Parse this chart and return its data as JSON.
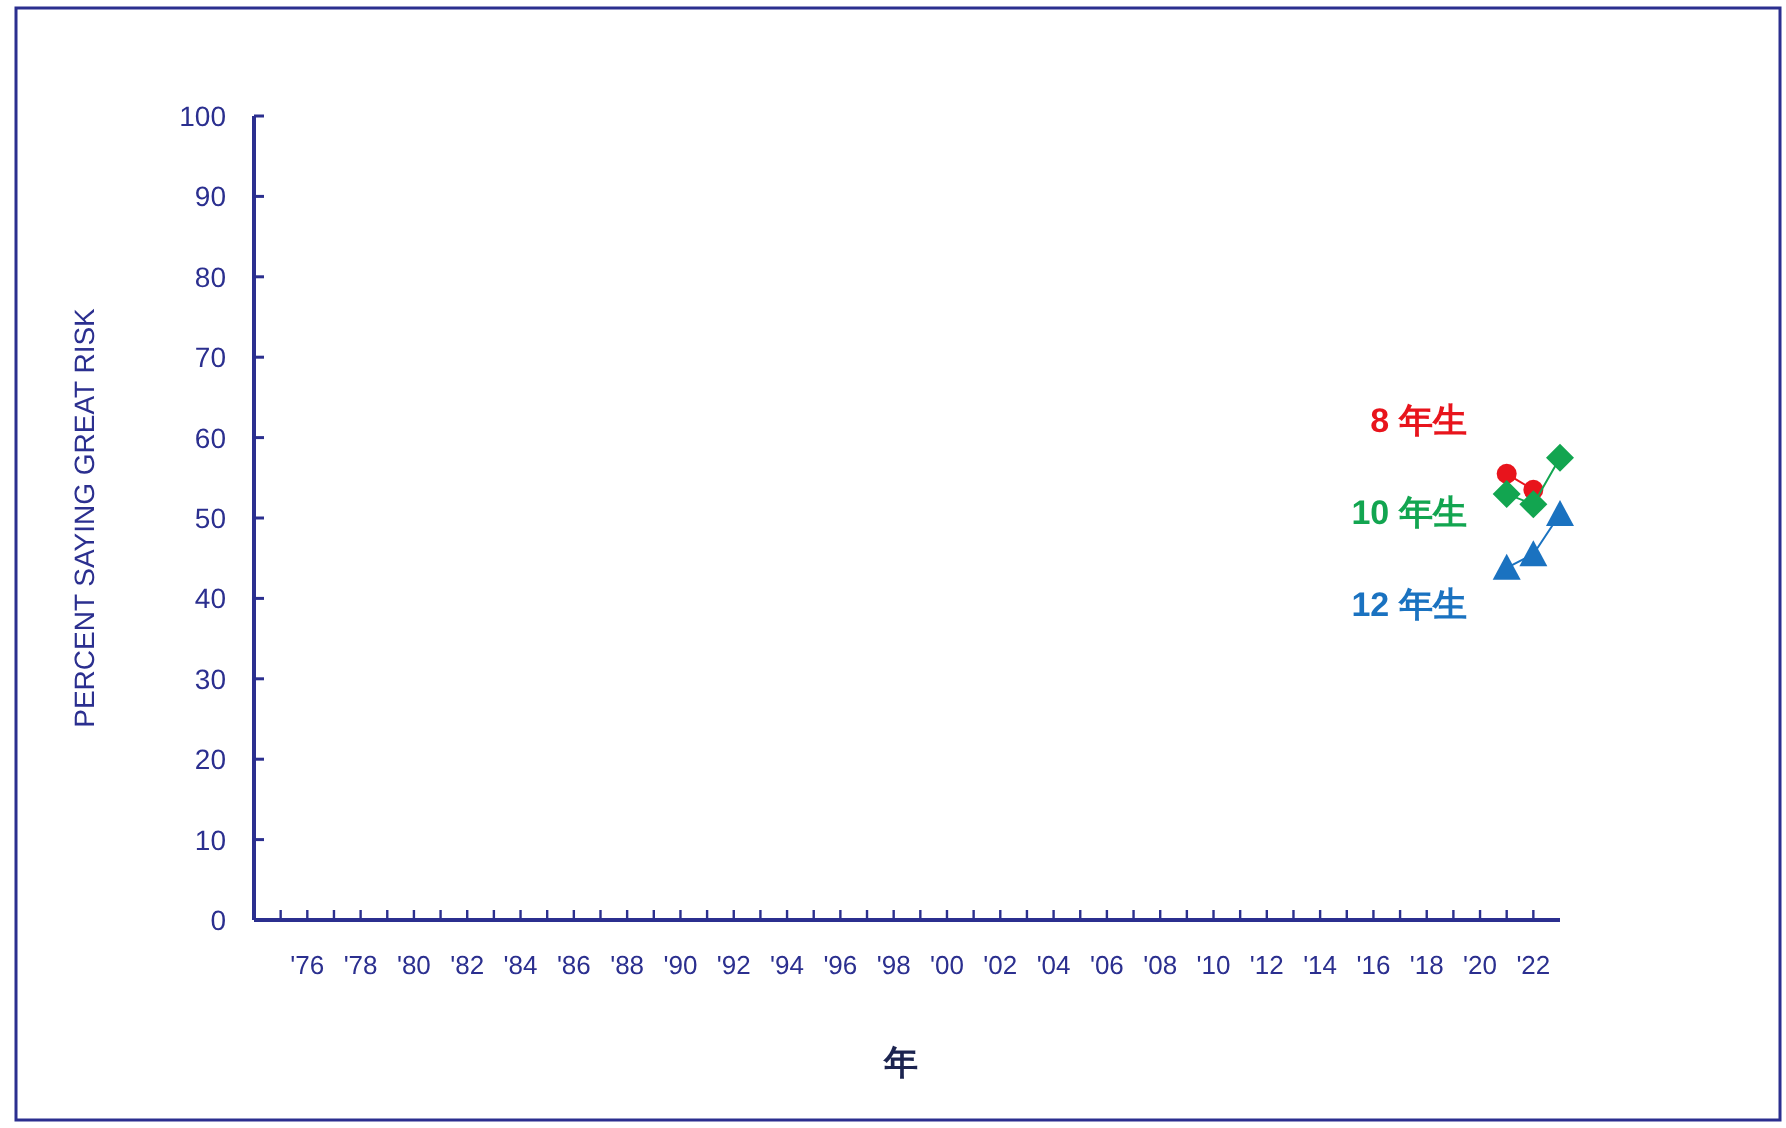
{
  "chart_data": {
    "type": "line",
    "xlabel": "年",
    "ylabel": "PERCENT SAYING GREAT RISK",
    "xlim": [
      1974,
      2023
    ],
    "ylim": [
      0,
      100
    ],
    "yticks": [
      0,
      10,
      20,
      30,
      40,
      50,
      60,
      70,
      80,
      90,
      100
    ],
    "xticks": [
      {
        "value": 1975,
        "label": null
      },
      {
        "value": 1976,
        "label": "'76"
      },
      {
        "value": 1977,
        "label": null
      },
      {
        "value": 1978,
        "label": "'78"
      },
      {
        "value": 1979,
        "label": null
      },
      {
        "value": 1980,
        "label": "'80"
      },
      {
        "value": 1981,
        "label": null
      },
      {
        "value": 1982,
        "label": "'82"
      },
      {
        "value": 1983,
        "label": null
      },
      {
        "value": 1984,
        "label": "'84"
      },
      {
        "value": 1985,
        "label": null
      },
      {
        "value": 1986,
        "label": "'86"
      },
      {
        "value": 1987,
        "label": null
      },
      {
        "value": 1988,
        "label": "'88"
      },
      {
        "value": 1989,
        "label": null
      },
      {
        "value": 1990,
        "label": "'90"
      },
      {
        "value": 1991,
        "label": null
      },
      {
        "value": 1992,
        "label": "'92"
      },
      {
        "value": 1993,
        "label": null
      },
      {
        "value": 1994,
        "label": "'94"
      },
      {
        "value": 1995,
        "label": null
      },
      {
        "value": 1996,
        "label": "'96"
      },
      {
        "value": 1997,
        "label": null
      },
      {
        "value": 1998,
        "label": "'98"
      },
      {
        "value": 1999,
        "label": null
      },
      {
        "value": 2000,
        "label": "'00"
      },
      {
        "value": 2001,
        "label": null
      },
      {
        "value": 2002,
        "label": "'02"
      },
      {
        "value": 2003,
        "label": null
      },
      {
        "value": 2004,
        "label": "'04"
      },
      {
        "value": 2005,
        "label": null
      },
      {
        "value": 2006,
        "label": "'06"
      },
      {
        "value": 2007,
        "label": null
      },
      {
        "value": 2008,
        "label": "'08"
      },
      {
        "value": 2009,
        "label": null
      },
      {
        "value": 2010,
        "label": "'10"
      },
      {
        "value": 2011,
        "label": null
      },
      {
        "value": 2012,
        "label": "'12"
      },
      {
        "value": 2013,
        "label": null
      },
      {
        "value": 2014,
        "label": "'14"
      },
      {
        "value": 2015,
        "label": null
      },
      {
        "value": 2016,
        "label": "'16"
      },
      {
        "value": 2017,
        "label": null
      },
      {
        "value": 2018,
        "label": "'18"
      },
      {
        "value": 2019,
        "label": null
      },
      {
        "value": 2020,
        "label": "'20"
      },
      {
        "value": 2021,
        "label": null
      },
      {
        "value": 2022,
        "label": "'22"
      }
    ],
    "x": [
      2021,
      2022,
      2023
    ],
    "series": [
      {
        "name": "8 年生",
        "color": "#e8141c",
        "marker": "circle",
        "values": [
          55.5,
          53.5,
          null
        ]
      },
      {
        "name": "10 年生",
        "color": "#12a550",
        "marker": "diamond",
        "values": [
          53,
          51.7,
          57.5
        ]
      },
      {
        "name": "12 年生",
        "color": "#1a72c0",
        "marker": "triangle",
        "values": [
          43.8,
          45.5,
          50.5
        ]
      }
    ],
    "grid": false,
    "legend": false
  }
}
